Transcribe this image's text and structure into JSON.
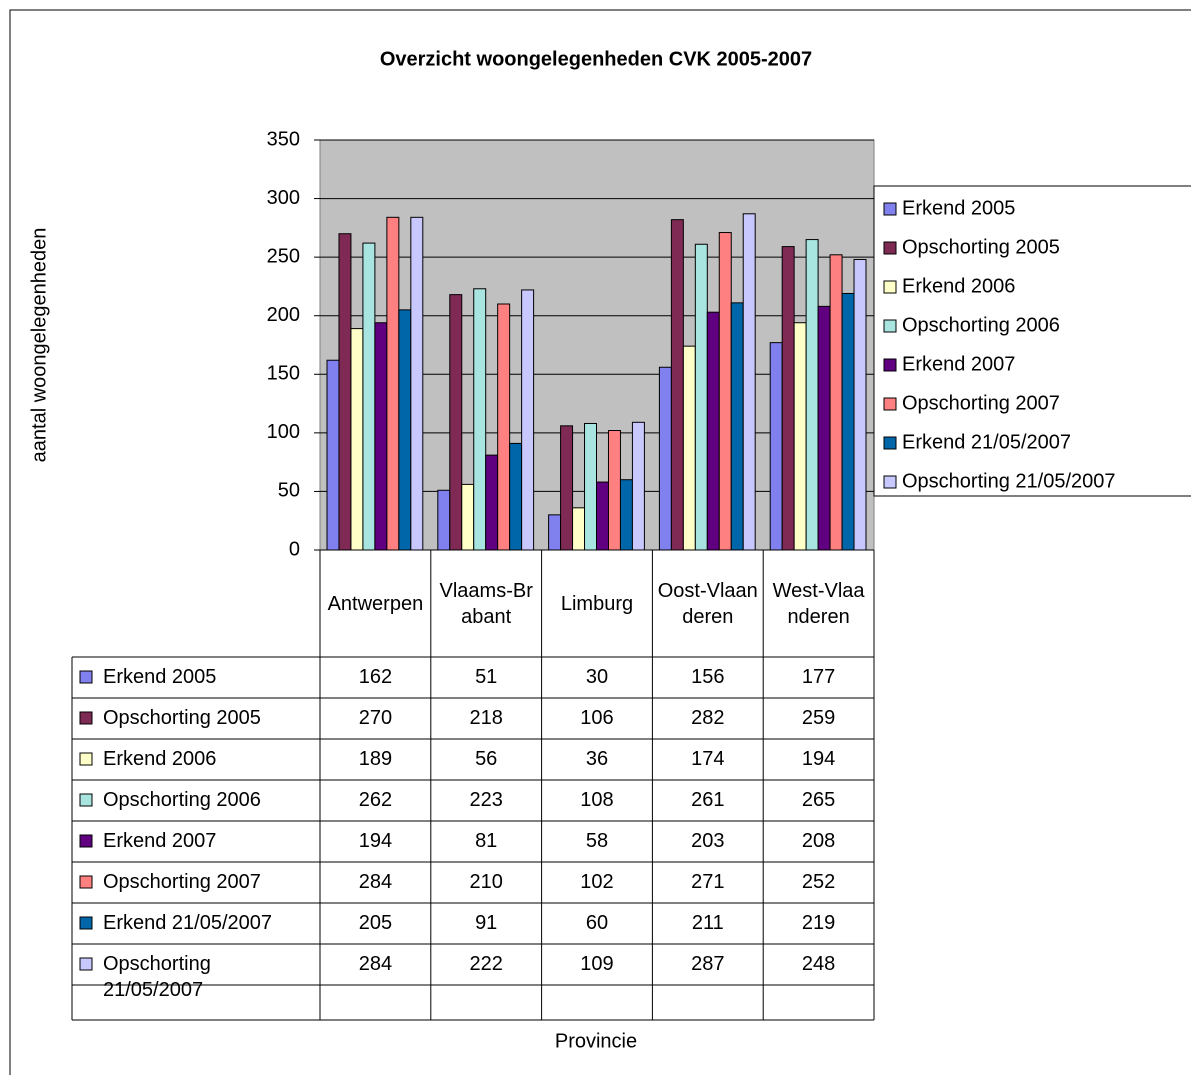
{
  "chart_data": {
    "type": "bar",
    "title": "Overzicht woongelegenheden CVK 2005-2007",
    "y_label": "aantal woongelegenheden",
    "x_label": "Provincie",
    "categories": [
      "Antwerpen",
      "Vlaams-Brabant",
      "Limburg",
      "Oost-Vlaanderen",
      "West-Vlaanderen"
    ],
    "series": [
      {
        "name": "Erkend 2005",
        "color": "#8080ee",
        "values": [
          162,
          51,
          30,
          156,
          177
        ]
      },
      {
        "name": "Opschorting 2005",
        "color": "#7f2a55",
        "values": [
          270,
          218,
          106,
          282,
          259
        ]
      },
      {
        "name": "Erkend 2006",
        "color": "#ffffc8",
        "values": [
          189,
          56,
          36,
          174,
          194
        ]
      },
      {
        "name": "Opschorting 2006",
        "color": "#a8e4e0",
        "values": [
          262,
          223,
          108,
          261,
          265
        ]
      },
      {
        "name": "Erkend 2007",
        "color": "#600080",
        "values": [
          194,
          81,
          58,
          203,
          208
        ]
      },
      {
        "name": "Opschorting 2007",
        "color": "#ff8080",
        "values": [
          284,
          210,
          102,
          271,
          252
        ]
      },
      {
        "name": "Erkend 21/05/2007",
        "color": "#0066aa",
        "values": [
          205,
          91,
          60,
          211,
          219
        ]
      },
      {
        "name": "Opschorting 21/05/2007",
        "color": "#c8c8ff",
        "values": [
          284,
          222,
          109,
          287,
          248
        ]
      }
    ],
    "ylim": [
      0,
      350
    ],
    "yticks": [
      0,
      50,
      100,
      150,
      200,
      250,
      300,
      350
    ],
    "grid": true,
    "legend": "right"
  }
}
